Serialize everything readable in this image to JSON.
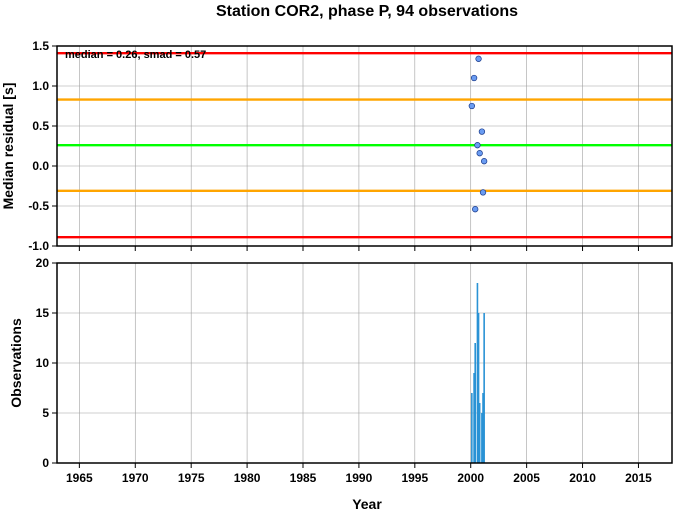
{
  "chart_data": [
    {
      "type": "scatter",
      "title": "Station COR2, phase P, 94 observations",
      "xlabel": "",
      "ylabel": "Median residual [s]",
      "xlim": [
        1963,
        2018
      ],
      "ylim": [
        -1.0,
        1.5
      ],
      "yticks": [
        -1.0,
        -0.5,
        0.0,
        0.5,
        1.0,
        1.5
      ],
      "ytick_labels": [
        "-1.0",
        "-0.5",
        "0.0",
        "0.5",
        "1.0",
        "1.5"
      ],
      "grid": true,
      "annotation": "median = 0.26, smad = 0.57",
      "reference_lines": [
        {
          "y": 1.41,
          "color": "#ff0000"
        },
        {
          "y": 0.83,
          "color": "#ffa500"
        },
        {
          "y": 0.26,
          "color": "#00ff00"
        },
        {
          "y": -0.31,
          "color": "#ffa500"
        },
        {
          "y": -0.89,
          "color": "#ff0000"
        }
      ],
      "points": [
        {
          "x": 2000.1,
          "y": 0.75
        },
        {
          "x": 2000.3,
          "y": 1.1
        },
        {
          "x": 2000.4,
          "y": -0.54
        },
        {
          "x": 2000.6,
          "y": 0.26
        },
        {
          "x": 2000.7,
          "y": 1.34
        },
        {
          "x": 2000.8,
          "y": 0.16
        },
        {
          "x": 2001.0,
          "y": 0.43
        },
        {
          "x": 2001.1,
          "y": -0.33
        },
        {
          "x": 2001.2,
          "y": 0.06
        }
      ],
      "marker_color": "#6a9cf2"
    },
    {
      "type": "bar",
      "xlabel": "Year",
      "ylabel": "Observations",
      "xlim": [
        1963,
        2018
      ],
      "ylim": [
        0,
        20
      ],
      "xticks": [
        1965,
        1970,
        1975,
        1980,
        1985,
        1990,
        1995,
        2000,
        2005,
        2010,
        2015
      ],
      "xtick_labels": [
        "1965",
        "1970",
        "1975",
        "1980",
        "1985",
        "1990",
        "1995",
        "2000",
        "2005",
        "2010",
        "2015"
      ],
      "yticks": [
        0,
        5,
        10,
        15,
        20
      ],
      "ytick_labels": [
        "0",
        "5",
        "10",
        "15",
        "20"
      ],
      "grid": true,
      "bar_color": "#2a93d5",
      "bars": [
        {
          "x": 2000.1,
          "value": 7
        },
        {
          "x": 2000.3,
          "value": 9
        },
        {
          "x": 2000.4,
          "value": 12
        },
        {
          "x": 2000.6,
          "value": 18
        },
        {
          "x": 2000.7,
          "value": 15
        },
        {
          "x": 2000.8,
          "value": 6
        },
        {
          "x": 2001.0,
          "value": 5
        },
        {
          "x": 2001.1,
          "value": 7
        },
        {
          "x": 2001.2,
          "value": 15
        }
      ]
    }
  ]
}
